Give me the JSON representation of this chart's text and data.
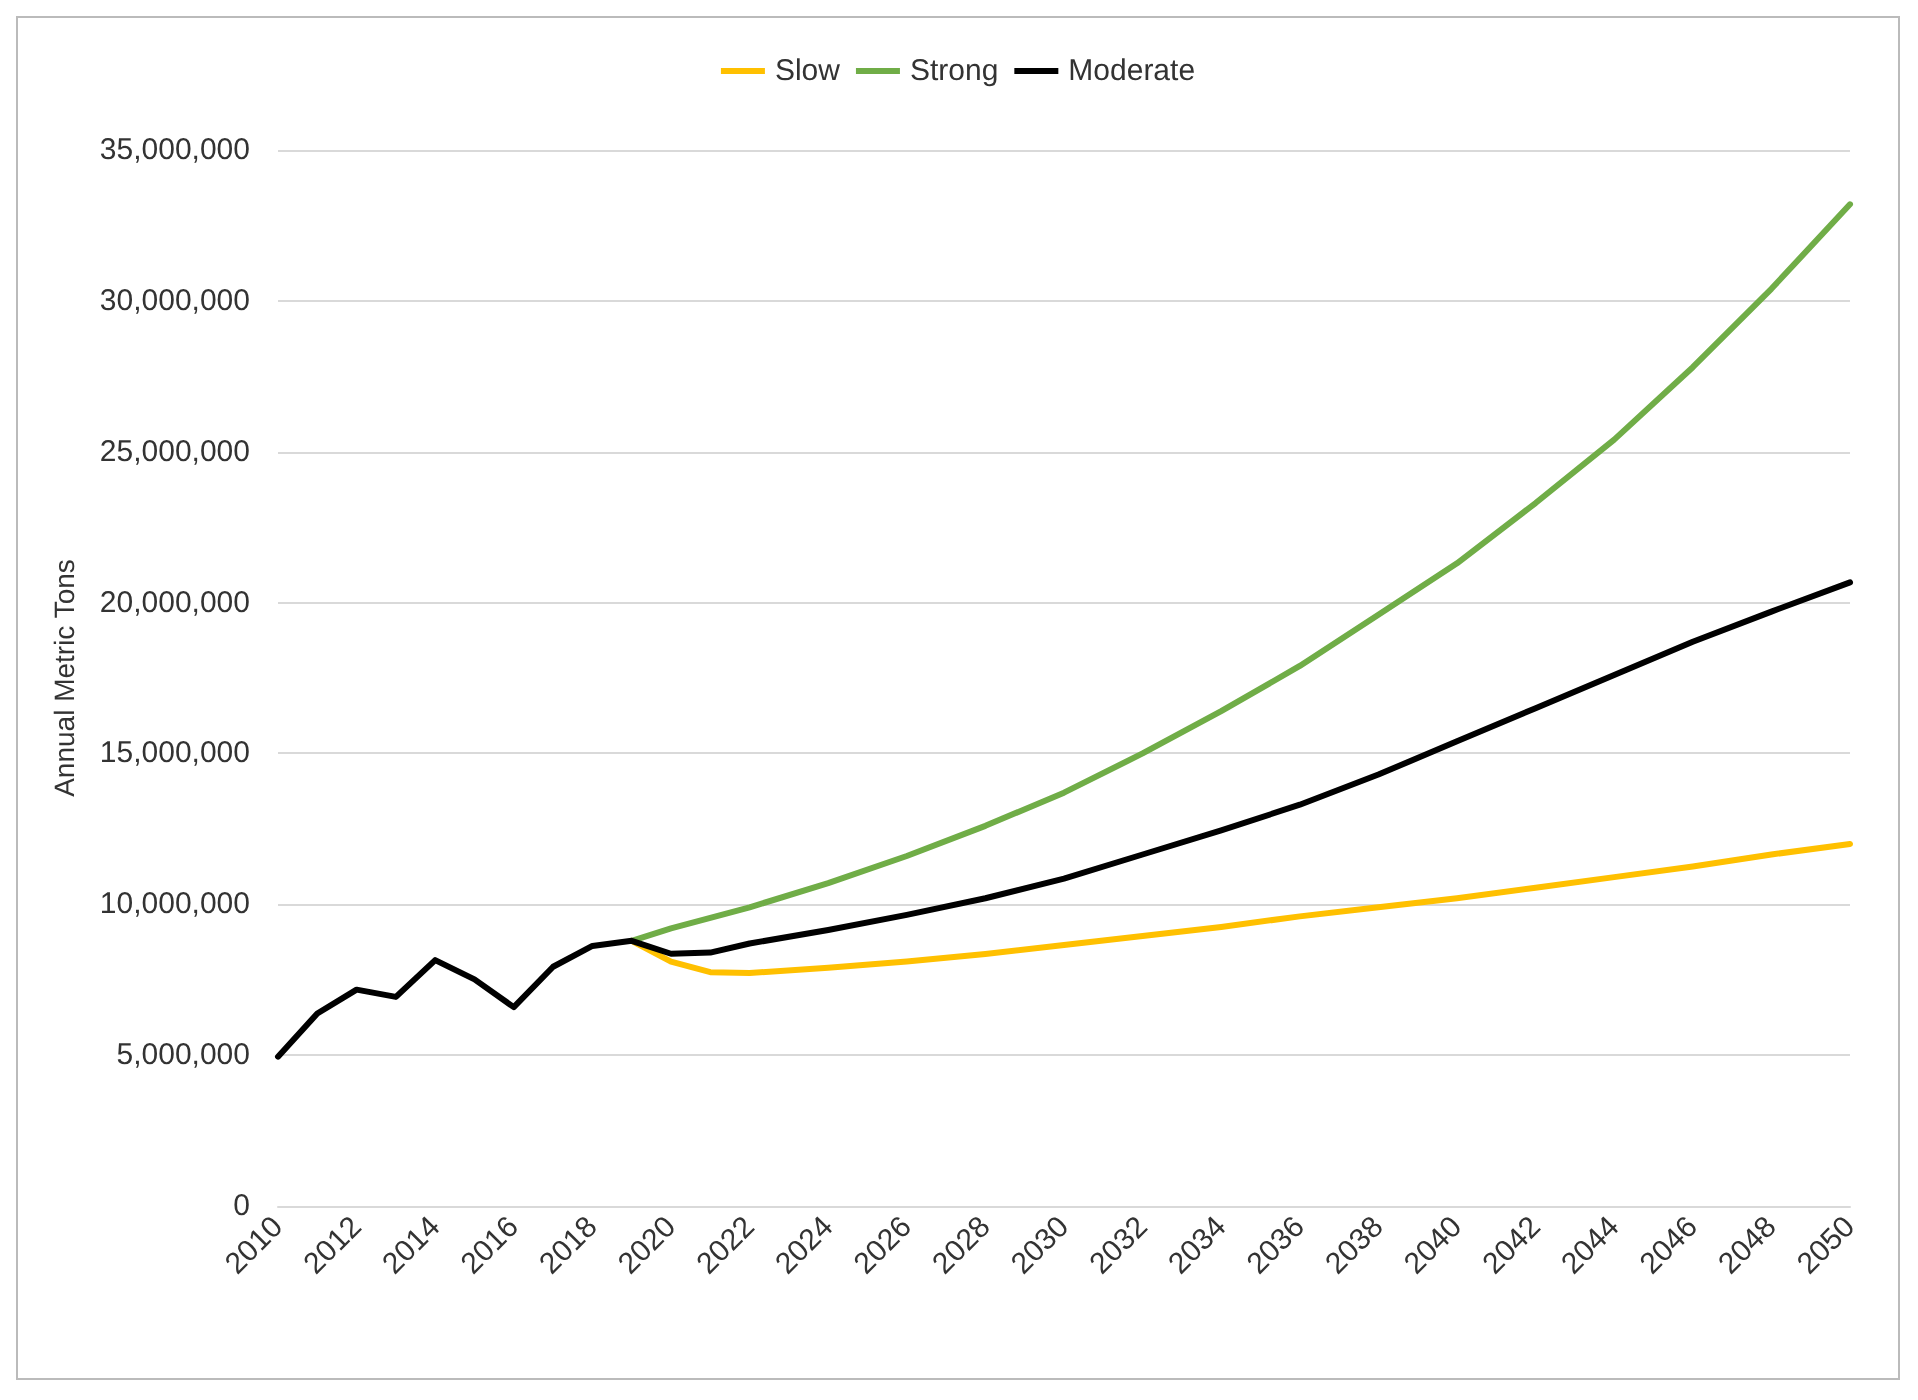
{
  "chart_data": {
    "type": "line",
    "ylabel": "Annual Metric Tons",
    "xlim": [
      2010,
      2050
    ],
    "xticks": [
      2010,
      2012,
      2014,
      2016,
      2018,
      2020,
      2022,
      2024,
      2026,
      2028,
      2030,
      2032,
      2034,
      2036,
      2038,
      2040,
      2042,
      2044,
      2046,
      2048,
      2050
    ],
    "ylim": [
      0,
      35000000
    ],
    "yticks": [
      0,
      {
        "value": 5000000,
        "label": "5,000,000"
      },
      {
        "value": 10000000,
        "label": "10,000,000"
      },
      {
        "value": 15000000,
        "label": "15,000,000"
      },
      {
        "value": 20000000,
        "label": "20,000,000"
      },
      {
        "value": 25000000,
        "label": "25,000,000"
      },
      {
        "value": 30000000,
        "label": "30,000,000"
      },
      {
        "value": 35000000,
        "label": "35,000,000"
      }
    ],
    "grid": "y",
    "legend": "top",
    "marker": "none",
    "line_style": "solid",
    "series": [
      {
        "name": "Slow",
        "color": "#ffc000",
        "x": [
          2019,
          2020,
          2021,
          2022,
          2024,
          2026,
          2028,
          2030,
          2032,
          2034,
          2036,
          2038,
          2040,
          2042,
          2044,
          2046,
          2048,
          2050
        ],
        "values": [
          8790000,
          8100000,
          7750000,
          7720000,
          7900000,
          8100000,
          8350000,
          8650000,
          8950000,
          9250000,
          9600000,
          9900000,
          10200000,
          10550000,
          10900000,
          11250000,
          11650000,
          12000000
        ]
      },
      {
        "name": "Strong",
        "color": "#70ad47",
        "x": [
          2019,
          2020,
          2022,
          2024,
          2026,
          2028,
          2030,
          2032,
          2034,
          2036,
          2038,
          2040,
          2042,
          2044,
          2046,
          2048,
          2050
        ],
        "values": [
          8790000,
          9200000,
          9900000,
          10700000,
          11600000,
          12600000,
          13700000,
          15000000,
          16400000,
          17900000,
          19600000,
          21300000,
          23300000,
          25400000,
          27800000,
          30400000,
          33200000
        ]
      },
      {
        "name": "Moderate",
        "color": "#000000",
        "x": [
          2010,
          2011,
          2012,
          2013,
          2014,
          2015,
          2016,
          2017,
          2018,
          2019,
          2020,
          2021,
          2022,
          2024,
          2026,
          2028,
          2030,
          2032,
          2034,
          2036,
          2038,
          2040,
          2042,
          2044,
          2046,
          2048,
          2050
        ],
        "values": [
          4950000,
          6380000,
          7170000,
          6930000,
          8150000,
          7510000,
          6590000,
          7930000,
          8620000,
          8790000,
          8360000,
          8400000,
          8700000,
          9150000,
          9650000,
          10200000,
          10850000,
          11650000,
          12450000,
          13300000,
          14300000,
          15400000,
          16500000,
          17600000,
          18700000,
          19700000,
          20670000
        ]
      }
    ]
  }
}
